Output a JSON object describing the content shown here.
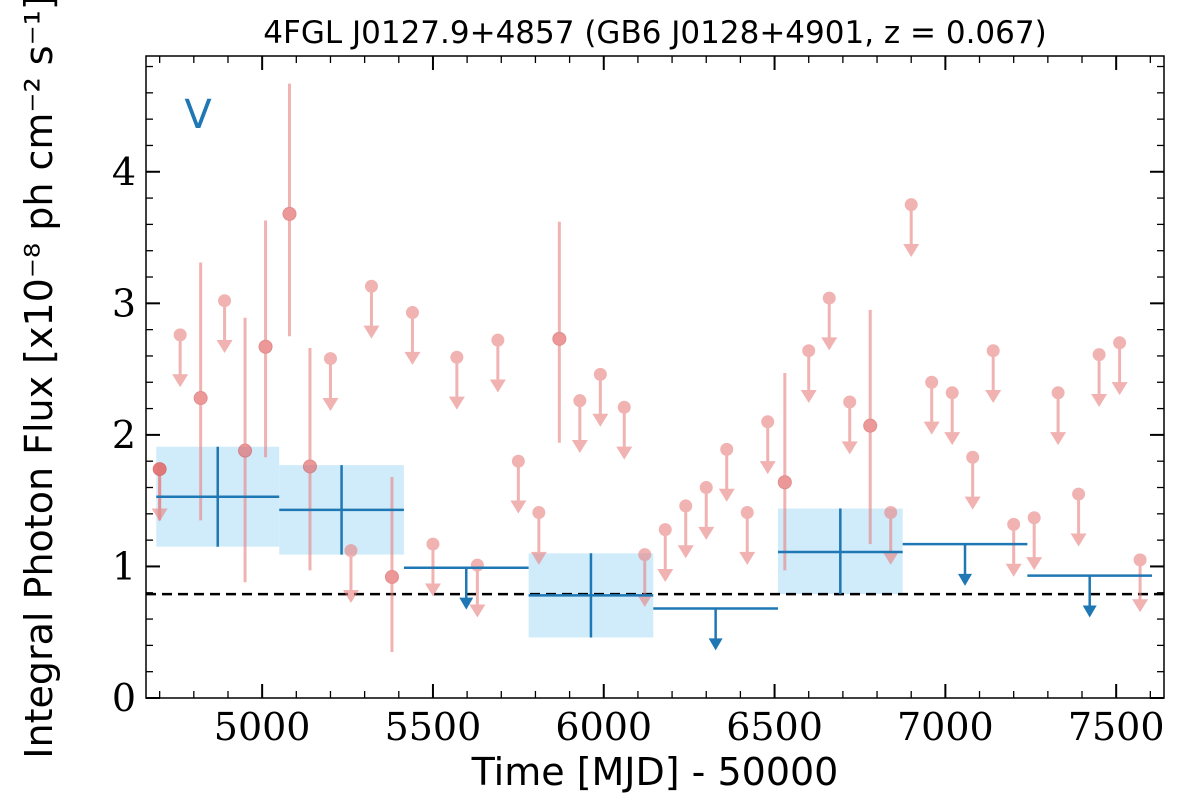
{
  "chart_data": {
    "type": "scatter",
    "title": "4FGL J0127.9+4857 (GB6 J0128+4901, z = 0.067)",
    "xlabel": "Time [MJD] - 50000",
    "ylabel": "Integral Photon Flux [x10⁻⁸ ph cm⁻² s⁻¹]",
    "flag_label": "V",
    "xlim": [
      4660,
      7640
    ],
    "ylim": [
      0,
      4.88
    ],
    "xticks": [
      5000,
      5500,
      6000,
      6500,
      7000,
      7500
    ],
    "yticks": [
      0,
      1,
      2,
      3,
      4
    ],
    "average_flux": 0.79,
    "colors": {
      "short": "#e88080",
      "long": "#1f77b4",
      "band": "#cbeafb",
      "average": "#000000"
    },
    "short_bin_detections": [
      {
        "x": 4700,
        "y": 1.74,
        "low": 1.35,
        "high": 1.74
      },
      {
        "x": 4820,
        "y": 2.28,
        "low": 1.35,
        "high": 3.31
      },
      {
        "x": 4950,
        "y": 1.88,
        "low": 0.88,
        "high": 2.89
      },
      {
        "x": 5010,
        "y": 2.67,
        "low": 1.83,
        "high": 3.63
      },
      {
        "x": 5080,
        "y": 3.68,
        "low": 2.75,
        "high": 4.67
      },
      {
        "x": 5140,
        "y": 1.76,
        "low": 0.97,
        "high": 2.66
      },
      {
        "x": 5380,
        "y": 0.92,
        "low": 0.35,
        "high": 1.68
      },
      {
        "x": 5870,
        "y": 2.73,
        "low": 1.94,
        "high": 3.62
      },
      {
        "x": 6530,
        "y": 1.64,
        "low": 0.97,
        "high": 2.47
      },
      {
        "x": 6780,
        "y": 2.07,
        "low": 1.17,
        "high": 2.95
      }
    ],
    "short_bin_upper_limits": [
      {
        "x": 4700,
        "y": 1.74
      },
      {
        "x": 4760,
        "y": 2.76
      },
      {
        "x": 4890,
        "y": 3.02
      },
      {
        "x": 5200,
        "y": 2.58
      },
      {
        "x": 5260,
        "y": 1.12
      },
      {
        "x": 5320,
        "y": 3.13
      },
      {
        "x": 5440,
        "y": 2.93
      },
      {
        "x": 5500,
        "y": 1.17
      },
      {
        "x": 5570,
        "y": 2.59
      },
      {
        "x": 5630,
        "y": 1.01
      },
      {
        "x": 5690,
        "y": 2.72
      },
      {
        "x": 5750,
        "y": 1.8
      },
      {
        "x": 5810,
        "y": 1.41
      },
      {
        "x": 5930,
        "y": 2.26
      },
      {
        "x": 5990,
        "y": 2.46
      },
      {
        "x": 6060,
        "y": 2.21
      },
      {
        "x": 6120,
        "y": 1.09
      },
      {
        "x": 6180,
        "y": 1.28
      },
      {
        "x": 6240,
        "y": 1.46
      },
      {
        "x": 6300,
        "y": 1.6
      },
      {
        "x": 6360,
        "y": 1.89
      },
      {
        "x": 6420,
        "y": 1.41
      },
      {
        "x": 6480,
        "y": 2.1
      },
      {
        "x": 6600,
        "y": 2.64
      },
      {
        "x": 6660,
        "y": 3.04
      },
      {
        "x": 6720,
        "y": 2.25
      },
      {
        "x": 6840,
        "y": 1.41
      },
      {
        "x": 6900,
        "y": 3.75
      },
      {
        "x": 6960,
        "y": 2.4
      },
      {
        "x": 7020,
        "y": 2.32
      },
      {
        "x": 7080,
        "y": 1.83
      },
      {
        "x": 7140,
        "y": 2.64
      },
      {
        "x": 7200,
        "y": 1.32
      },
      {
        "x": 7260,
        "y": 1.37
      },
      {
        "x": 7330,
        "y": 2.32
      },
      {
        "x": 7390,
        "y": 1.55
      },
      {
        "x": 7450,
        "y": 2.61
      },
      {
        "x": 7510,
        "y": 2.7
      },
      {
        "x": 7570,
        "y": 1.05
      }
    ],
    "long_bin_detections": [
      {
        "x0": 4690,
        "x1": 5050,
        "y": 1.53,
        "low": 1.15,
        "high": 1.91
      },
      {
        "x0": 5050,
        "x1": 5415,
        "y": 1.43,
        "low": 1.09,
        "high": 1.77
      },
      {
        "x0": 5780,
        "x1": 6145,
        "y": 0.78,
        "low": 0.46,
        "high": 1.1
      },
      {
        "x0": 6510,
        "x1": 6875,
        "y": 1.11,
        "low": 0.79,
        "high": 1.44
      }
    ],
    "long_bin_upper_limits": [
      {
        "x0": 5415,
        "x1": 5780,
        "y": 0.99
      },
      {
        "x0": 6145,
        "x1": 6510,
        "y": 0.68
      },
      {
        "x0": 6875,
        "x1": 7240,
        "y": 1.17
      },
      {
        "x0": 7240,
        "x1": 7605,
        "y": 0.93
      }
    ]
  }
}
